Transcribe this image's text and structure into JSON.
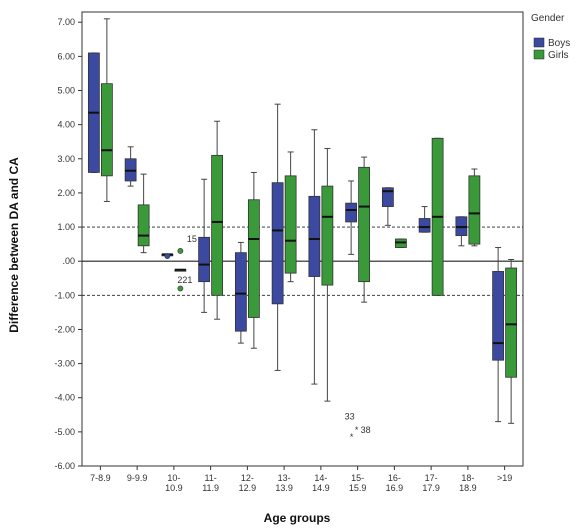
{
  "chart_data": {
    "type": "boxplot",
    "xlabel": "Age groups",
    "ylabel": "Difference between DA and CA",
    "ylim": [
      -6.0,
      7.3
    ],
    "y_ticks": [
      -6.0,
      -5.0,
      -4.0,
      -3.0,
      -2.0,
      -1.0,
      0.0,
      1.0,
      2.0,
      3.0,
      4.0,
      5.0,
      6.0,
      7.0
    ],
    "y_tick_labels": [
      "-6.00",
      "-5.00",
      "-4.00",
      "-3.00",
      "-2.00",
      "-1.00",
      ".00",
      "1.00",
      "2.00",
      "3.00",
      "4.00",
      "5.00",
      "6.00",
      "7.00"
    ],
    "categories": [
      "7-8.9",
      "9-9.9",
      "10-\n10.9",
      "11-\n11.9",
      "12-\n12.9",
      "13-\n13.9",
      "14-\n14.9",
      "15-\n15.9",
      "16-\n16.9",
      "17-\n17.9",
      "18-\n18.9",
      ">19"
    ],
    "category_lines": [
      [
        "7-8.9"
      ],
      [
        "9-9.9"
      ],
      [
        "10-",
        "10.9"
      ],
      [
        "11-",
        "11.9"
      ],
      [
        "12-",
        "12.9"
      ],
      [
        "13-",
        "13.9"
      ],
      [
        "14-",
        "14.9"
      ],
      [
        "15-",
        "15.9"
      ],
      [
        "16-",
        "16.9"
      ],
      [
        "17-",
        "17.9"
      ],
      [
        "18-",
        "18.9"
      ],
      [
        ">19"
      ]
    ],
    "reference_lines": [
      {
        "y": 1.0,
        "style": "dashed"
      },
      {
        "y": 0.0,
        "style": "solid"
      },
      {
        "y": -1.0,
        "style": "dashed"
      }
    ],
    "legend": {
      "title": "Gender",
      "placement": "top-right"
    },
    "series": [
      {
        "name": "Boys",
        "color": "#3b4aa0",
        "boxes": [
          {
            "min": 2.6,
            "q1": 2.6,
            "median": 4.35,
            "q3": 6.1,
            "max": 6.1
          },
          {
            "min": 2.2,
            "q1": 2.35,
            "median": 2.65,
            "q3": 3.0,
            "max": 3.35
          },
          {
            "min": 0.2,
            "q1": 0.2,
            "median": 0.2,
            "q3": 0.2,
            "max": 0.2
          },
          {
            "min": -1.5,
            "q1": -0.6,
            "median": -0.1,
            "q3": 0.7,
            "max": 2.4
          },
          {
            "min": -2.4,
            "q1": -2.05,
            "median": -0.95,
            "q3": 0.25,
            "max": 0.55
          },
          {
            "min": -3.2,
            "q1": -1.25,
            "median": 0.9,
            "q3": 2.3,
            "max": 4.6
          },
          {
            "min": -3.6,
            "q1": -0.45,
            "median": 0.65,
            "q3": 1.9,
            "max": 3.85
          },
          {
            "min": 0.2,
            "q1": 1.15,
            "median": 1.5,
            "q3": 1.7,
            "max": 2.35
          },
          {
            "min": 1.05,
            "q1": 1.6,
            "median": 2.05,
            "q3": 2.15,
            "max": 2.15
          },
          {
            "min": 0.85,
            "q1": 0.85,
            "median": 1.0,
            "q3": 1.25,
            "max": 1.6
          },
          {
            "min": 0.45,
            "q1": 0.75,
            "median": 1.0,
            "q3": 1.3,
            "max": 1.3
          },
          {
            "min": -4.7,
            "q1": -2.9,
            "median": -2.4,
            "q3": -0.3,
            "max": 0.4
          }
        ],
        "outliers": [
          {
            "category": 2,
            "y": 0.15
          }
        ]
      },
      {
        "name": "Girls",
        "color": "#3a9a3a",
        "boxes": [
          {
            "min": 1.75,
            "q1": 2.5,
            "median": 3.25,
            "q3": 5.2,
            "max": 7.1
          },
          {
            "min": 0.25,
            "q1": 0.45,
            "median": 0.75,
            "q3": 1.65,
            "max": 2.55
          },
          {
            "min": -0.25,
            "q1": -0.25,
            "median": -0.25,
            "q3": -0.25,
            "max": -0.25
          },
          {
            "min": -1.7,
            "q1": -1.0,
            "median": 1.15,
            "q3": 3.1,
            "max": 4.1
          },
          {
            "min": -2.55,
            "q1": -1.65,
            "median": 0.65,
            "q3": 1.8,
            "max": 2.6
          },
          {
            "min": -0.6,
            "q1": -0.35,
            "median": 0.6,
            "q3": 2.5,
            "max": 3.2
          },
          {
            "min": -4.1,
            "q1": -0.7,
            "median": 1.3,
            "q3": 2.2,
            "max": 3.3
          },
          {
            "min": -1.2,
            "q1": -0.6,
            "median": 1.6,
            "q3": 2.75,
            "max": 3.05
          },
          {
            "min": 0.4,
            "q1": 0.4,
            "median": 0.55,
            "q3": 0.65,
            "max": 0.65
          },
          {
            "min": -1.0,
            "q1": -1.0,
            "median": 1.3,
            "q3": 3.6,
            "max": 3.6
          },
          {
            "min": 0.45,
            "q1": 0.5,
            "median": 1.4,
            "q3": 2.5,
            "max": 2.7
          },
          {
            "min": -4.75,
            "q1": -3.4,
            "median": -1.85,
            "q3": -0.2,
            "max": 0.05
          }
        ],
        "outliers": [
          {
            "category": 2,
            "y": 0.3
          },
          {
            "category": 2,
            "y": -0.8
          }
        ]
      }
    ],
    "annotations": [
      {
        "text": "15",
        "category": 2,
        "y": 0.65,
        "offset": "boys-right"
      },
      {
        "text": "221",
        "category": 2,
        "y": -0.55,
        "offset": "girls"
      },
      {
        "text": "33",
        "category": 7,
        "y": -4.55,
        "offset": "left"
      },
      {
        "text": "38",
        "category": 7,
        "y": -4.95,
        "offset": "right",
        "marker": "asterisk-y",
        "marker_y": -4.95
      },
      {
        "text": "",
        "category": 7,
        "y": -5.15,
        "offset": "boys",
        "marker": "asterisk-y",
        "marker_y": -5.15
      }
    ]
  }
}
